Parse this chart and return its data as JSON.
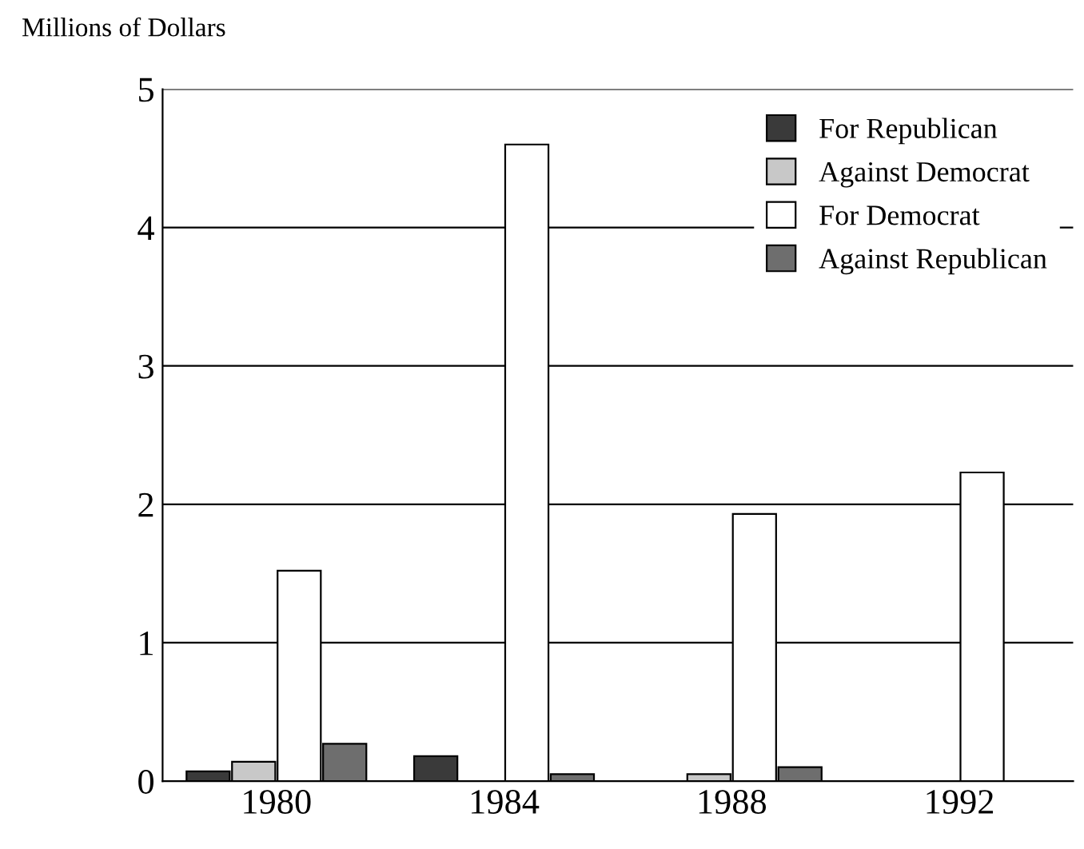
{
  "chart_data": {
    "type": "bar",
    "ylabel": "Millions of Dollars",
    "categories": [
      "1980",
      "1984",
      "1988",
      "1992"
    ],
    "series": [
      {
        "name": "For Republican",
        "color": "#3a3a3a",
        "values": [
          0.07,
          0.18,
          null,
          null
        ]
      },
      {
        "name": "Against Democrat",
        "color": "#c8c8c8",
        "values": [
          0.14,
          null,
          0.05,
          null
        ]
      },
      {
        "name": "For Democrat",
        "color": "#ffffff",
        "values": [
          1.52,
          4.6,
          1.93,
          2.23
        ]
      },
      {
        "name": "Against Republican",
        "color": "#6e6e6e",
        "values": [
          0.27,
          0.05,
          0.1,
          null
        ]
      }
    ],
    "ylim": [
      0,
      5
    ],
    "yticks": [
      0,
      1,
      2,
      3,
      4,
      5
    ],
    "grid": "y",
    "legend": "top right"
  }
}
